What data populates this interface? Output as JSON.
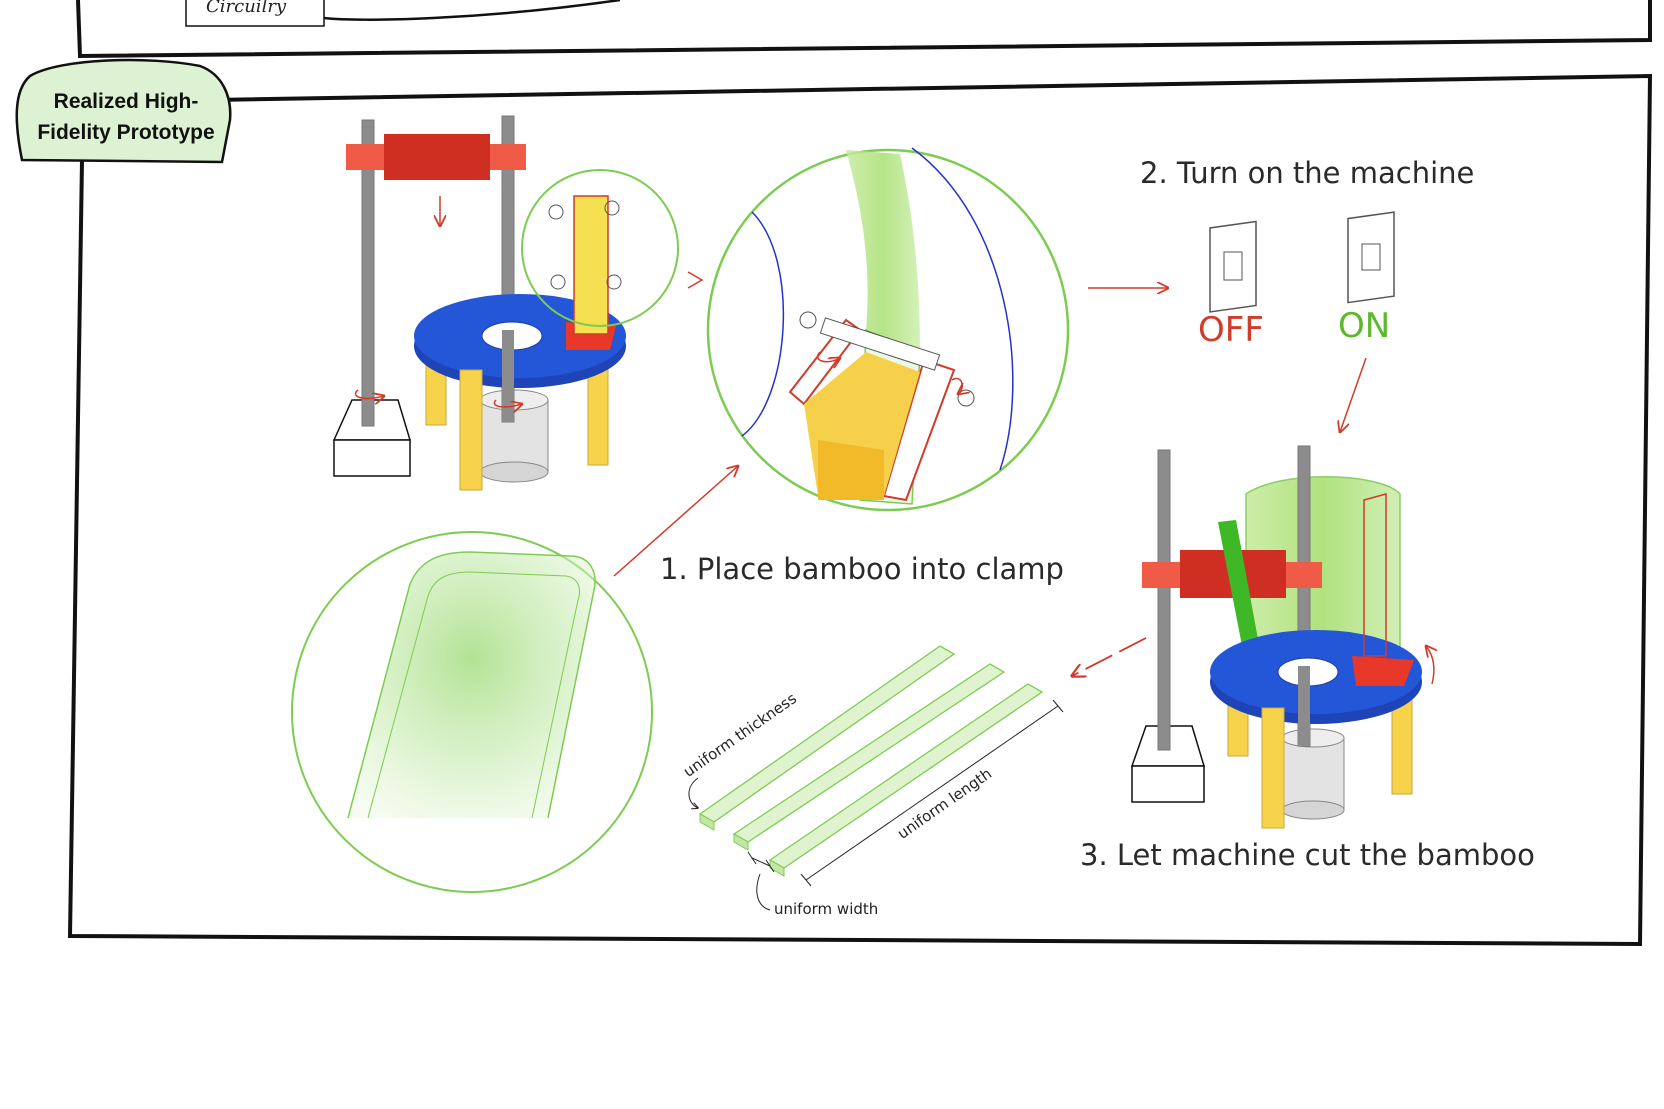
{
  "top_box": {
    "label": "Circuilry"
  },
  "section_tag": {
    "line1": "Realized High-",
    "line2": "Fidelity Prototype"
  },
  "steps": {
    "step1": "1. Place bamboo into clamp",
    "step2": "2. Turn on the machine",
    "step3": "3. Let machine cut the bamboo"
  },
  "switches": {
    "off": "OFF",
    "on": "ON"
  },
  "strips": {
    "thickness": "uniform thickness",
    "length": "uniform length",
    "width": "uniform width"
  },
  "colors": {
    "blue": "#2456d8",
    "red": "#d23a2a",
    "clamp_red": "#f05b47",
    "yellow": "#f6d04a",
    "green": "#7dcc52",
    "pale_green": "#dff2d0",
    "gray": "#8c8c8c"
  }
}
